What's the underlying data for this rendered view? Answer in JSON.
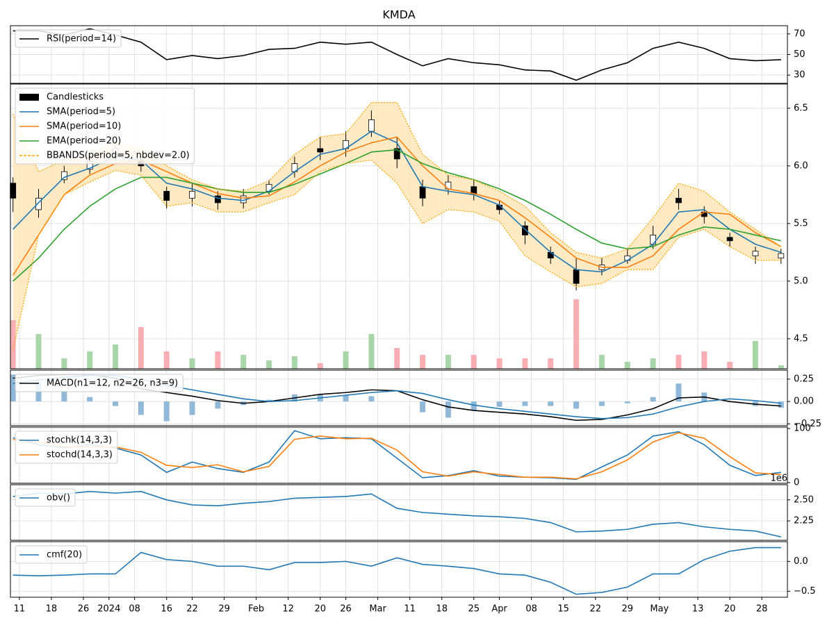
{
  "chart_data": [
    {
      "type": "line",
      "title": "KMDA",
      "legend": "upper left",
      "grid": true,
      "x": [
        0,
        4,
        8,
        12,
        16,
        20,
        24,
        28,
        32,
        36,
        40,
        44,
        48,
        52,
        56,
        60,
        64,
        68,
        72,
        76,
        80,
        84,
        88,
        92,
        96,
        100,
        104,
        108,
        112,
        116,
        120
      ],
      "xlim": [
        -0.4,
        121
      ],
      "ylim": [
        22,
        78
      ],
      "yticks": [
        30,
        50,
        70
      ],
      "series": [
        {
          "name": "RSI(period=14)",
          "color": "#000000",
          "values": [
            73,
            73,
            69,
            75,
            69,
            62,
            45,
            49,
            46,
            49,
            55,
            56,
            62,
            60,
            62,
            50,
            39,
            46,
            42,
            40,
            35,
            34,
            25,
            35,
            42,
            56,
            62,
            56,
            46,
            44,
            45
          ]
        }
      ]
    },
    {
      "type": "candlestick",
      "legend": "upper left",
      "grid": true,
      "x": [
        0,
        4,
        8,
        12,
        16,
        20,
        24,
        28,
        32,
        36,
        40,
        44,
        48,
        52,
        56,
        60,
        64,
        68,
        72,
        76,
        80,
        84,
        88,
        92,
        96,
        100,
        104,
        108,
        112,
        116,
        120
      ],
      "xlim": [
        -0.4,
        121
      ],
      "ylim": [
        4.24,
        6.71
      ],
      "yticks": [
        4.5,
        {
          "value": 5,
          "label": "5.0"
        },
        5.5,
        {
          "value": 6,
          "label": "6.0"
        },
        6.5
      ],
      "y2lim": [
        0,
        410000
      ],
      "candles": {
        "name": "Candlesticks",
        "up_color": "#ffffff",
        "down_color": "#000000",
        "edge_color": "#000000",
        "open": [
          5.85,
          5.62,
          5.88,
          5.97,
          6.1,
          6.05,
          5.78,
          5.72,
          5.74,
          5.68,
          5.78,
          5.95,
          6.15,
          6.15,
          6.3,
          6.15,
          5.82,
          5.8,
          5.82,
          5.66,
          5.48,
          5.25,
          5.1,
          5.1,
          5.18,
          5.32,
          5.72,
          5.6,
          5.38,
          5.22,
          5.2
        ],
        "high": [
          5.9,
          5.8,
          6.0,
          6.1,
          6.22,
          6.1,
          5.82,
          5.85,
          5.78,
          5.8,
          5.88,
          6.08,
          6.25,
          6.3,
          6.48,
          6.25,
          5.88,
          5.92,
          5.88,
          5.7,
          5.52,
          5.3,
          5.2,
          5.2,
          5.28,
          5.48,
          5.8,
          5.65,
          5.42,
          5.3,
          5.28
        ],
        "low": [
          5.6,
          5.55,
          5.85,
          5.93,
          6.05,
          5.95,
          5.63,
          5.65,
          5.62,
          5.63,
          5.75,
          5.9,
          6.05,
          6.08,
          6.25,
          5.98,
          5.65,
          5.75,
          5.7,
          5.58,
          5.32,
          5.15,
          4.92,
          5.05,
          5.15,
          5.28,
          5.62,
          5.5,
          5.3,
          5.15,
          5.15
        ],
        "close": [
          5.72,
          5.72,
          5.95,
          6.04,
          6.15,
          6.0,
          5.7,
          5.78,
          5.68,
          5.74,
          5.84,
          6.02,
          6.12,
          6.22,
          6.4,
          6.06,
          5.72,
          5.86,
          5.76,
          5.62,
          5.4,
          5.2,
          4.98,
          5.14,
          5.22,
          5.4,
          5.68,
          5.56,
          5.35,
          5.26,
          5.24
        ]
      },
      "series": [
        {
          "name": "SMA(period=5)",
          "color": "#1f77b4",
          "values": [
            5.45,
            5.68,
            5.9,
            5.98,
            6.08,
            6.05,
            5.85,
            5.8,
            5.72,
            5.7,
            5.78,
            5.95,
            6.1,
            6.15,
            6.3,
            6.2,
            5.82,
            5.78,
            5.75,
            5.66,
            5.45,
            5.25,
            5.1,
            5.08,
            5.18,
            5.32,
            5.6,
            5.62,
            5.45,
            5.32,
            5.25
          ]
        },
        {
          "name": "SMA(period=10)",
          "color": "#ff7f0e",
          "values": [
            5.05,
            5.4,
            5.75,
            5.92,
            6.02,
            6.05,
            5.95,
            5.85,
            5.76,
            5.72,
            5.74,
            5.86,
            6.0,
            6.12,
            6.2,
            6.25,
            6.0,
            5.8,
            5.76,
            5.7,
            5.55,
            5.38,
            5.2,
            5.12,
            5.12,
            5.22,
            5.45,
            5.6,
            5.58,
            5.42,
            5.3
          ]
        },
        {
          "name": "EMA(period=20)",
          "color": "#2ca02c",
          "values": [
            5.0,
            5.2,
            5.45,
            5.65,
            5.8,
            5.9,
            5.9,
            5.85,
            5.8,
            5.77,
            5.77,
            5.84,
            5.93,
            6.02,
            6.12,
            6.14,
            6.02,
            5.94,
            5.88,
            5.8,
            5.7,
            5.58,
            5.45,
            5.33,
            5.28,
            5.3,
            5.4,
            5.47,
            5.45,
            5.4,
            5.35
          ]
        },
        {
          "name": "BBANDS(period=5, nbdev=2.0)",
          "color": "#ffa500",
          "style": "dashed",
          "fill": "#ffe5b4",
          "values": [
            6.45,
            5.95,
            6.05,
            6.1,
            6.2,
            6.15,
            6.0,
            5.88,
            5.8,
            5.78,
            5.87,
            6.1,
            6.25,
            6.28,
            6.55,
            6.55,
            6.1,
            5.92,
            5.88,
            5.78,
            5.65,
            5.42,
            5.25,
            5.2,
            5.28,
            5.55,
            5.85,
            5.78,
            5.6,
            5.45,
            5.3
          ],
          "lower": [
            4.4,
            5.4,
            5.75,
            5.86,
            5.96,
            5.92,
            5.65,
            5.68,
            5.6,
            5.6,
            5.68,
            5.75,
            5.95,
            6.02,
            6.05,
            5.85,
            5.5,
            5.62,
            5.6,
            5.52,
            5.22,
            5.08,
            4.95,
            4.98,
            5.1,
            5.1,
            5.38,
            5.45,
            5.3,
            5.18,
            5.18
          ]
        },
        {
          "type": "bar",
          "axis": "y2",
          "up_color": "#a9d6a9",
          "down_color": "#f9aeb4",
          "values": [
            70000,
            50000,
            15000,
            25000,
            35000,
            60000,
            25000,
            15000,
            25000,
            20000,
            12000,
            18000,
            8000,
            25000,
            50000,
            30000,
            20000,
            20000,
            20000,
            15000,
            15000,
            15000,
            100000,
            20000,
            10000,
            15000,
            20000,
            25000,
            10000,
            40000,
            5000
          ]
        }
      ]
    },
    {
      "type": "line",
      "legend": "upper left",
      "grid": true,
      "x": [
        0,
        4,
        8,
        12,
        16,
        20,
        24,
        28,
        32,
        36,
        40,
        44,
        48,
        52,
        56,
        60,
        64,
        68,
        72,
        76,
        80,
        84,
        88,
        92,
        96,
        100,
        104,
        108,
        112,
        116,
        120
      ],
      "xlim": [
        -0.4,
        121
      ],
      "ylim": [
        -0.27,
        0.35
      ],
      "yticks": [
        0.25,
        {
          "value": 0,
          "label": "0.00"
        },
        {
          "value": -0.25,
          "label": "−0.25"
        }
      ],
      "series": [
        {
          "name": "MACD(n1=12, n2=26, n3=9)",
          "color": "#000000",
          "values": [
            0.26,
            0.29,
            0.3,
            0.3,
            0.26,
            0.14,
            0.1,
            0.06,
            0.01,
            -0.02,
            0.0,
            0.04,
            0.08,
            0.1,
            0.13,
            0.12,
            0.02,
            -0.06,
            -0.1,
            -0.12,
            -0.14,
            -0.17,
            -0.21,
            -0.2,
            -0.15,
            -0.08,
            0.04,
            0.05,
            0.0,
            -0.03,
            -0.05
          ]
        },
        {
          "color": "#1f77b4",
          "values": [
            0.2,
            0.24,
            0.27,
            0.29,
            0.29,
            0.25,
            0.18,
            0.13,
            0.08,
            0.03,
            0.0,
            0.01,
            0.04,
            0.07,
            0.1,
            0.12,
            0.09,
            0.02,
            -0.04,
            -0.08,
            -0.11,
            -0.14,
            -0.17,
            -0.19,
            -0.18,
            -0.14,
            -0.06,
            0.0,
            0.03,
            0.01,
            -0.02
          ]
        },
        {
          "type": "bar",
          "color": "#8fb8d9",
          "values": [
            0.3,
            0.22,
            0.12,
            0.05,
            -0.05,
            -0.15,
            -0.22,
            -0.15,
            -0.08,
            -0.04,
            0.02,
            0.08,
            0.08,
            0.07,
            0.06,
            0.0,
            -0.12,
            -0.18,
            -0.1,
            -0.06,
            -0.05,
            -0.05,
            -0.08,
            -0.05,
            -0.02,
            0.05,
            0.2,
            0.1,
            -0.01,
            -0.05,
            -0.07
          ]
        }
      ]
    },
    {
      "type": "line",
      "legend": "upper left",
      "grid": true,
      "x": [
        0,
        4,
        8,
        12,
        16,
        20,
        24,
        28,
        32,
        36,
        40,
        44,
        48,
        52,
        56,
        60,
        64,
        68,
        72,
        76,
        80,
        84,
        88,
        92,
        96,
        100,
        104,
        108,
        112,
        116,
        120
      ],
      "xlim": [
        -0.4,
        121
      ],
      "ylim": [
        -1.3,
        102.6
      ],
      "yticks": [
        0,
        100
      ],
      "series": [
        {
          "name": "stochk(14,3,3)",
          "color": "#1f77b4",
          "values": [
            83,
            70,
            64,
            70,
            64,
            51,
            19,
            38,
            26,
            19,
            38,
            96,
            81,
            83,
            81,
            45,
            9,
            13,
            22,
            12,
            10,
            9,
            6,
            29,
            51,
            86,
            94,
            70,
            32,
            13,
            19
          ]
        },
        {
          "name": "stochd(14,3,3)",
          "color": "#ff7f0e",
          "values": [
            80,
            75,
            66,
            66,
            66,
            56,
            32,
            28,
            33,
            20,
            30,
            80,
            86,
            81,
            82,
            60,
            20,
            12,
            20,
            15,
            10,
            10,
            7,
            20,
            42,
            75,
            92,
            82,
            48,
            18,
            15
          ]
        }
      ]
    },
    {
      "type": "line",
      "legend": "upper left",
      "grid": true,
      "offset_label": "1e6",
      "x": [
        0,
        4,
        8,
        12,
        16,
        20,
        24,
        28,
        32,
        36,
        40,
        44,
        48,
        52,
        56,
        60,
        64,
        68,
        72,
        76,
        80,
        84,
        88,
        92,
        96,
        100,
        104,
        108,
        112,
        116,
        120
      ],
      "xlim": [
        -0.4,
        121
      ],
      "ylim": [
        2.02,
        2.68
      ],
      "yticks": [
        2.25,
        {
          "value": 2.5,
          "label": "2.50"
        }
      ],
      "series": [
        {
          "name": "obv()",
          "color": "#1f77b4",
          "values": [
            2.54,
            2.58,
            2.57,
            2.6,
            2.58,
            2.6,
            2.5,
            2.44,
            2.43,
            2.46,
            2.48,
            2.52,
            2.53,
            2.54,
            2.57,
            2.4,
            2.35,
            2.33,
            2.31,
            2.3,
            2.28,
            2.23,
            2.12,
            2.13,
            2.15,
            2.21,
            2.23,
            2.18,
            2.15,
            2.13,
            2.06
          ]
        }
      ]
    },
    {
      "type": "line",
      "legend": "upper left",
      "grid": true,
      "x": [
        0,
        4,
        8,
        12,
        16,
        20,
        24,
        28,
        32,
        36,
        40,
        44,
        48,
        52,
        56,
        60,
        64,
        68,
        72,
        76,
        80,
        84,
        88,
        92,
        96,
        100,
        104,
        108,
        112,
        116,
        120
      ],
      "xlim": [
        -0.4,
        121
      ],
      "ylim": [
        -0.6,
        0.33
      ],
      "yticks": [
        {
          "value": 0,
          "label": "0.0"
        },
        {
          "value": -0.5,
          "label": "−0.5"
        }
      ],
      "xticks": [
        {
          "value": 1,
          "label": "11"
        },
        {
          "value": 6,
          "label": "18"
        },
        {
          "value": 11,
          "label": "26"
        },
        {
          "value": 15,
          "label": "2024"
        },
        {
          "value": 19,
          "label": "08"
        },
        {
          "value": 24,
          "label": "16"
        },
        {
          "value": 28,
          "label": "22"
        },
        {
          "value": 33,
          "label": "29"
        },
        {
          "value": 38,
          "label": "Feb"
        },
        {
          "value": 43,
          "label": "12"
        },
        {
          "value": 48,
          "label": "20"
        },
        {
          "value": 52,
          "label": "26"
        },
        {
          "value": 57,
          "label": "Mar"
        },
        {
          "value": 62,
          "label": "11"
        },
        {
          "value": 67,
          "label": "18"
        },
        {
          "value": 72,
          "label": "25"
        },
        {
          "value": 76,
          "label": "Apr"
        },
        {
          "value": 81,
          "label": "08"
        },
        {
          "value": 86,
          "label": "15"
        },
        {
          "value": 91,
          "label": "22"
        },
        {
          "value": 96,
          "label": "29"
        },
        {
          "value": 101,
          "label": "May"
        },
        {
          "value": 107,
          "label": "13"
        },
        {
          "value": 112,
          "label": "20"
        },
        {
          "value": 117,
          "label": "28"
        }
      ],
      "series": [
        {
          "name": "cmf(20)",
          "color": "#1f77b4",
          "values": [
            -0.23,
            -0.24,
            -0.23,
            -0.21,
            -0.21,
            0.15,
            0.03,
            0,
            -0.08,
            -0.08,
            -0.14,
            -0.02,
            -0.02,
            0,
            -0.08,
            0.06,
            -0.05,
            -0.08,
            -0.12,
            -0.21,
            -0.23,
            -0.35,
            -0.55,
            -0.52,
            -0.43,
            -0.21,
            -0.21,
            0.03,
            0.17,
            0.23,
            0.23
          ]
        }
      ]
    }
  ]
}
